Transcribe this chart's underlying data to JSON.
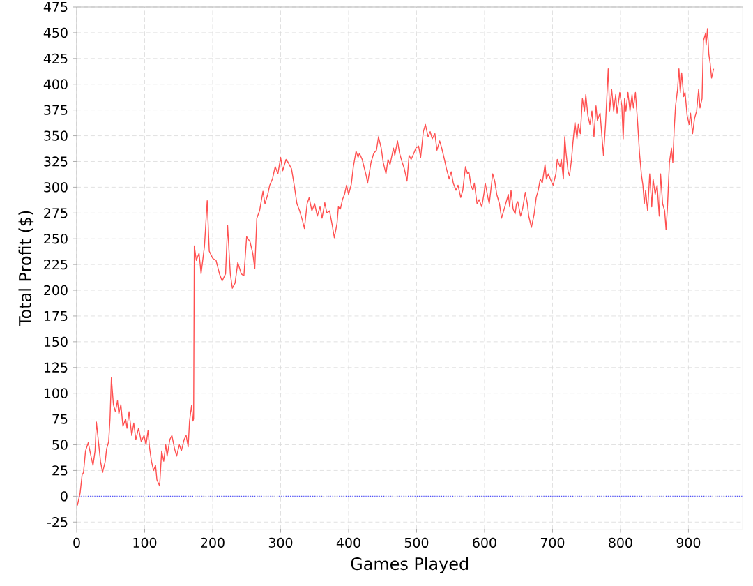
{
  "chart_data": {
    "type": "line",
    "xlabel": "Games Played",
    "ylabel": "Total Profit ($)",
    "color": "#ff5050",
    "x": [
      1,
      5,
      8,
      10,
      13,
      17,
      21,
      24,
      27,
      29,
      32,
      35,
      38,
      42,
      44,
      47,
      49,
      51,
      54,
      57,
      60,
      62,
      65,
      68,
      72,
      74,
      77,
      81,
      84,
      87,
      91,
      95,
      99,
      102,
      105,
      107,
      110,
      113,
      116,
      118,
      122,
      125,
      128,
      131,
      133,
      137,
      140,
      144,
      147,
      151,
      154,
      158,
      161,
      164,
      166,
      169,
      171,
      172,
      173,
      176,
      180,
      183,
      188,
      192,
      195,
      200,
      205,
      210,
      214,
      219,
      222,
      226,
      229,
      233,
      237,
      242,
      246,
      250,
      255,
      259,
      262,
      265,
      269,
      274,
      277,
      281,
      284,
      288,
      292,
      296,
      300,
      303,
      308,
      311,
      316,
      320,
      324,
      328,
      332,
      335,
      339,
      342,
      346,
      350,
      354,
      358,
      361,
      365,
      368,
      372,
      376,
      379,
      383,
      385,
      388,
      391,
      394,
      397,
      400,
      404,
      407,
      411,
      414,
      416,
      420,
      426,
      428,
      433,
      437,
      441,
      444,
      448,
      451,
      455,
      458,
      461,
      466,
      468,
      472,
      475,
      479,
      482,
      486,
      489,
      492,
      496,
      499,
      503,
      506,
      510,
      513,
      517,
      520,
      523,
      527,
      530,
      534,
      537,
      541,
      544,
      548,
      551,
      554,
      558,
      561,
      565,
      568,
      572,
      575,
      577,
      580,
      583,
      585,
      589,
      592,
      596,
      599,
      601,
      605,
      607,
      612,
      615,
      618,
      622,
      625,
      629,
      632,
      635,
      637,
      639,
      642,
      645,
      647,
      649,
      653,
      656,
      660,
      663,
      665,
      669,
      673,
      676,
      679,
      682,
      685,
      689,
      691,
      694,
      698,
      701,
      705,
      707,
      711,
      713,
      716,
      718,
      720,
      723,
      725,
      728,
      730,
      733,
      736,
      738,
      741,
      744,
      747,
      749,
      752,
      755,
      758,
      761,
      764,
      766,
      770,
      773,
      775,
      778,
      782,
      784,
      787,
      790,
      793,
      795,
      799,
      802,
      804,
      806,
      808,
      811,
      814,
      817,
      819,
      822,
      825,
      828,
      831,
      833,
      835,
      837,
      840,
      843,
      846,
      848,
      851,
      854,
      857,
      859,
      862,
      865,
      867,
      869,
      872,
      875,
      877,
      879,
      881,
      884,
      886,
      888,
      890,
      893,
      895,
      898,
      901,
      903,
      906,
      909,
      912,
      915,
      917,
      920,
      922,
      925,
      926,
      928,
      930,
      932,
      934,
      937
    ],
    "values": [
      -9,
      3,
      21,
      23,
      44,
      52,
      39,
      30,
      44,
      72,
      53,
      34,
      23,
      34,
      46,
      53,
      75,
      115,
      89,
      82,
      93,
      80,
      89,
      68,
      75,
      66,
      82,
      59,
      71,
      55,
      66,
      53,
      59,
      50,
      64,
      48,
      34,
      25,
      30,
      16,
      10,
      44,
      34,
      50,
      39,
      55,
      59,
      46,
      39,
      50,
      44,
      55,
      59,
      48,
      73,
      88,
      73,
      75,
      243,
      229,
      236,
      216,
      243,
      287,
      238,
      231,
      229,
      216,
      209,
      216,
      263,
      216,
      202,
      207,
      227,
      216,
      214,
      252,
      247,
      236,
      221,
      270,
      277,
      296,
      284,
      293,
      302,
      308,
      320,
      313,
      329,
      316,
      327,
      324,
      318,
      302,
      284,
      277,
      268,
      260,
      284,
      290,
      277,
      284,
      272,
      281,
      270,
      285,
      275,
      277,
      263,
      251,
      265,
      281,
      279,
      288,
      293,
      302,
      293,
      303,
      320,
      335,
      329,
      333,
      327,
      311,
      304,
      324,
      333,
      336,
      349,
      338,
      324,
      313,
      327,
      322,
      338,
      331,
      345,
      333,
      324,
      318,
      306,
      331,
      327,
      333,
      338,
      340,
      329,
      354,
      361,
      349,
      354,
      347,
      352,
      336,
      345,
      338,
      327,
      318,
      308,
      315,
      304,
      297,
      302,
      290,
      297,
      320,
      313,
      315,
      302,
      297,
      304,
      284,
      288,
      281,
      293,
      304,
      290,
      284,
      313,
      306,
      293,
      284,
      270,
      279,
      286,
      293,
      281,
      297,
      279,
      274,
      284,
      286,
      272,
      279,
      295,
      284,
      272,
      261,
      274,
      290,
      297,
      308,
      304,
      322,
      308,
      313,
      306,
      302,
      313,
      327,
      320,
      327,
      308,
      349,
      333,
      315,
      311,
      327,
      343,
      363,
      347,
      361,
      352,
      386,
      374,
      390,
      370,
      361,
      374,
      349,
      379,
      365,
      372,
      347,
      331,
      361,
      415,
      374,
      395,
      374,
      390,
      372,
      392,
      379,
      347,
      386,
      374,
      392,
      374,
      390,
      377,
      392,
      365,
      333,
      311,
      302,
      284,
      297,
      277,
      313,
      281,
      308,
      293,
      302,
      272,
      313,
      284,
      277,
      259,
      279,
      324,
      338,
      324,
      356,
      379,
      395,
      415,
      392,
      411,
      388,
      392,
      370,
      361,
      372,
      352,
      367,
      374,
      395,
      377,
      386,
      442,
      449,
      438,
      454,
      429,
      420,
      406,
      415
    ],
    "xlim": [
      0,
      980
    ],
    "ylim": [
      -32,
      475
    ],
    "xticks": [
      0,
      100,
      200,
      300,
      400,
      500,
      600,
      700,
      800,
      900
    ],
    "yticks": [
      -25,
      0,
      25,
      50,
      75,
      100,
      125,
      150,
      175,
      200,
      225,
      250,
      275,
      300,
      325,
      350,
      375,
      400,
      425,
      450,
      475
    ],
    "grid": true,
    "ref_lines": [
      {
        "axis": "y",
        "value": 0,
        "color": "#4d4dff",
        "line_style": "dotted"
      }
    ]
  }
}
